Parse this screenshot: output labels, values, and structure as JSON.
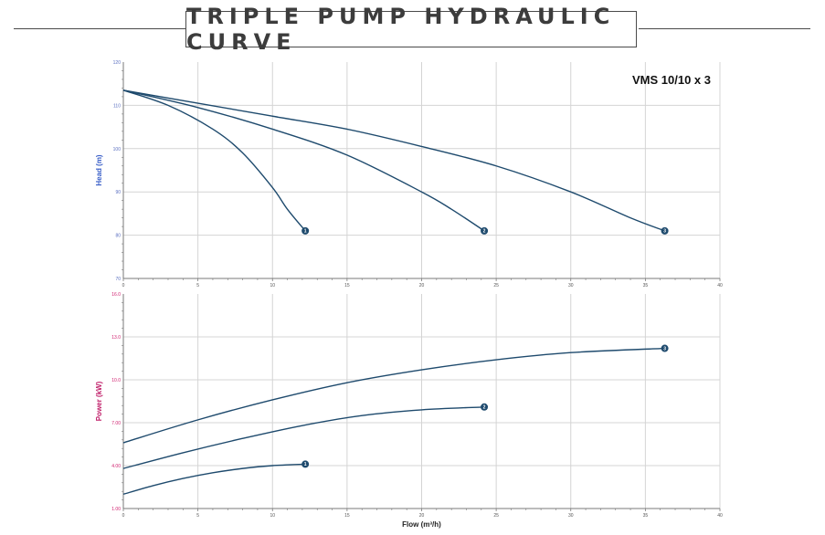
{
  "title": "TRIPLE PUMP HYDRAULIC CURVE",
  "chart_data": [
    {
      "type": "line",
      "model": "VMS 10/10 x 3",
      "xlabel": "",
      "ylabel": "Head (m)",
      "xlim": [
        0,
        40
      ],
      "ylim": [
        70,
        120
      ],
      "x_ticks": [
        "0",
        "5",
        "10",
        "15",
        "20",
        "25",
        "30",
        "35",
        "40"
      ],
      "y_ticks": [
        "70",
        "80",
        "90",
        "100",
        "110",
        "120"
      ],
      "series": [
        {
          "name": "1",
          "x": [
            0,
            3,
            6,
            8,
            10,
            11,
            12.2
          ],
          "y": [
            113.5,
            110,
            104.5,
            99,
            91,
            86,
            81
          ]
        },
        {
          "name": "2",
          "x": [
            0,
            5,
            10,
            15,
            20,
            22,
            24.2
          ],
          "y": [
            113.5,
            109.5,
            104.5,
            98.5,
            90,
            86,
            81
          ]
        },
        {
          "name": "3",
          "x": [
            0,
            5,
            10,
            15,
            20,
            25,
            30,
            34,
            36.3
          ],
          "y": [
            113.5,
            110.5,
            107.5,
            104.5,
            100.5,
            96,
            90,
            84,
            81
          ]
        }
      ]
    },
    {
      "type": "line",
      "xlabel": "Flow (m³/h)",
      "ylabel": "Power (kW)",
      "xlim": [
        0,
        40
      ],
      "ylim": [
        1,
        16
      ],
      "x_ticks": [
        "0",
        "5",
        "10",
        "15",
        "20",
        "25",
        "30",
        "35",
        "40"
      ],
      "y_ticks": [
        "1.00",
        "4.00",
        "7.00",
        "10.0",
        "13.0",
        "16.0"
      ],
      "series": [
        {
          "name": "1",
          "x": [
            0,
            2,
            4,
            6,
            8,
            10,
            12.2
          ],
          "y": [
            2.0,
            2.6,
            3.1,
            3.5,
            3.8,
            4.0,
            4.1
          ]
        },
        {
          "name": "2",
          "x": [
            0,
            4,
            8,
            12,
            16,
            20,
            24.2
          ],
          "y": [
            3.8,
            4.9,
            5.9,
            6.8,
            7.5,
            7.9,
            8.1
          ]
        },
        {
          "name": "3",
          "x": [
            0,
            5,
            10,
            15,
            20,
            25,
            30,
            36.3
          ],
          "y": [
            5.6,
            7.2,
            8.6,
            9.8,
            10.7,
            11.4,
            11.9,
            12.2
          ]
        }
      ]
    }
  ]
}
